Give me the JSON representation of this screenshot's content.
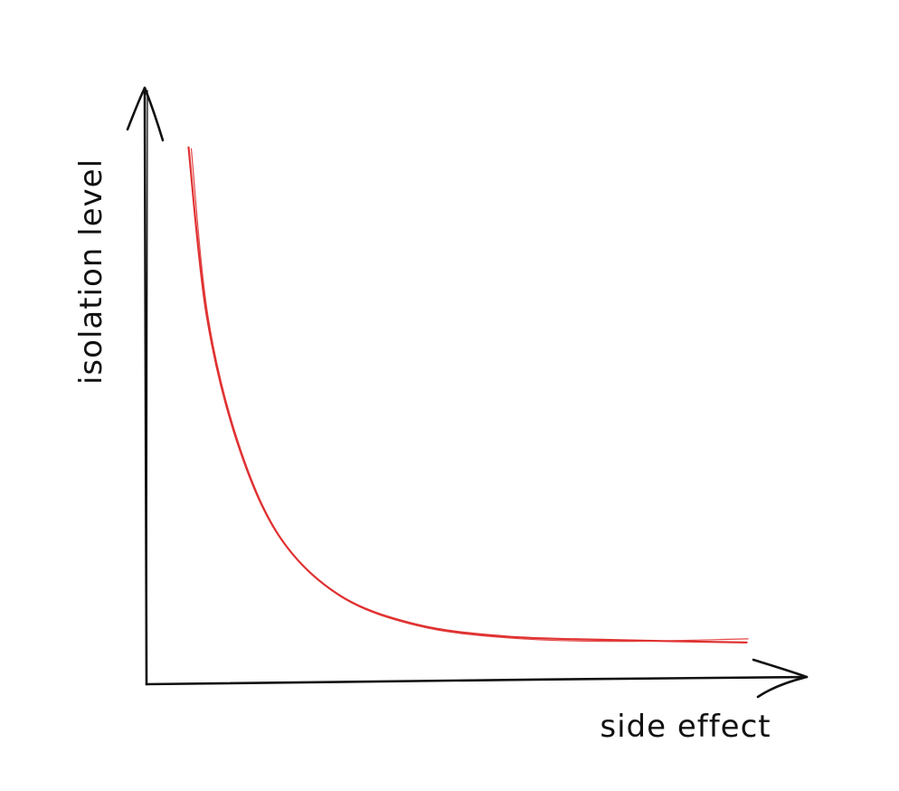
{
  "chart_data": {
    "type": "line",
    "xlabel": "side effect",
    "ylabel": "isolation level",
    "grid": false,
    "axes_ticks": false,
    "series": [
      {
        "color": "#e03131",
        "x": [
          0.07,
          0.1,
          0.15,
          0.22,
          0.32,
          0.45,
          0.6,
          0.78,
          1.0
        ],
        "y": [
          0.9,
          0.62,
          0.41,
          0.25,
          0.15,
          0.1,
          0.08,
          0.074,
          0.07
        ]
      }
    ],
    "xlim": [
      0,
      1.1
    ],
    "ylim": [
      0,
      1.0
    ]
  }
}
